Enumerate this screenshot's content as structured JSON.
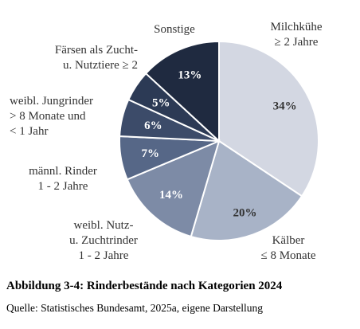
{
  "chart_data": {
    "type": "pie",
    "start": "top",
    "direction": "clockwise",
    "slices": [
      {
        "name": "Milchkühe\n≥ 2 Jahre",
        "value": 34,
        "label": "34%",
        "color": "#d3d7e2",
        "text_color": "#333333"
      },
      {
        "name": "Kälber\n≤ 8 Monate",
        "value": 20,
        "label": "20%",
        "color": "#a8b3c7",
        "text_color": "#333333"
      },
      {
        "name": "weibl. Nutz-\nu. Zuchtrinder\n1 - 2 Jahre",
        "value": 14,
        "label": "14%",
        "color": "#7d8ba6",
        "text_color": "#ffffff"
      },
      {
        "name": "männl. Rinder\n1 - 2 Jahre",
        "value": 7,
        "label": "7%",
        "color": "#566787",
        "text_color": "#ffffff"
      },
      {
        "name": "weibl. Jungrinder\n> 8 Monate und\n< 1 Jahr",
        "value": 6,
        "label": "6%",
        "color": "#3c4b69",
        "text_color": "#ffffff"
      },
      {
        "name": "Färsen als Zucht-\nu. Nutztiere  ≥ 2",
        "value": 5,
        "label": "5%",
        "color": "#2c3a55",
        "text_color": "#ffffff"
      },
      {
        "name": "Sonstige",
        "value": 13,
        "label": "13%",
        "color": "#1f2a40",
        "text_color": "#ffffff"
      }
    ]
  },
  "caption": "Abbildung 3-4: Rinderbestände nach Kategorien 2024",
  "source": "Quelle: Statistisches Bundesamt, 2025a, eigene Darstellung"
}
